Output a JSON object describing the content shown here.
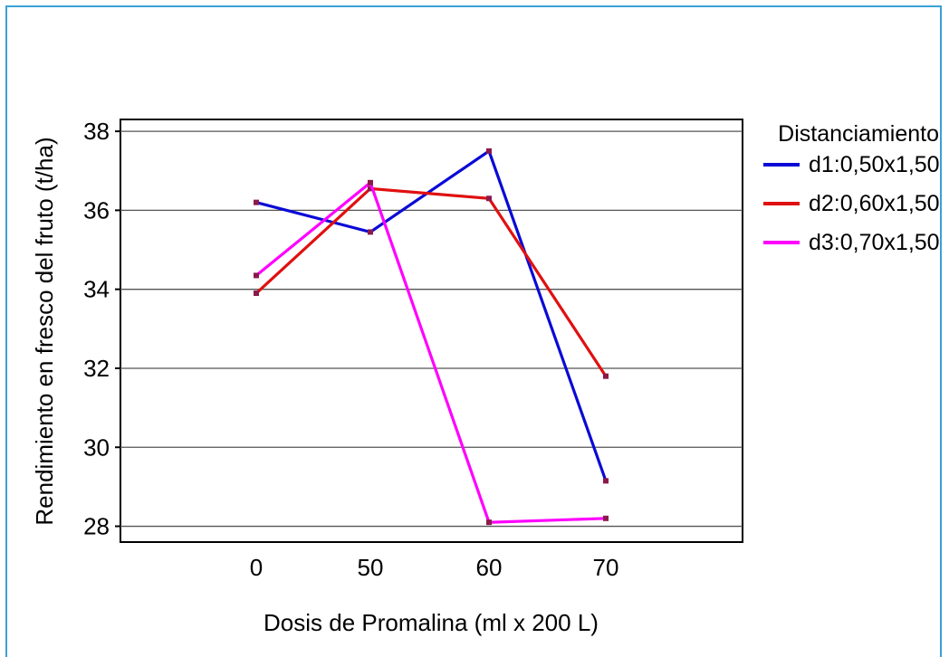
{
  "chart_data": {
    "type": "line",
    "title": "",
    "xlabel": "Dosis de Promalina (ml x 200 L)",
    "ylabel": "Rendimiento en fresco del fruto (t/ha)",
    "categories": [
      "0",
      "50",
      "60",
      "70"
    ],
    "ylim": [
      27.6,
      38.3
    ],
    "yticks": [
      28,
      30,
      32,
      34,
      36,
      38
    ],
    "grid": "horizontal",
    "legend": {
      "title": "Distanciamiento",
      "placement": "right"
    },
    "series": [
      {
        "name": "d1:0,50x1,50",
        "color": "#0a0ad6",
        "values": [
          36.2,
          35.45,
          37.5,
          29.15
        ]
      },
      {
        "name": "d2:0,60x1,50",
        "color": "#e01010",
        "values": [
          33.9,
          36.55,
          36.3,
          31.8
        ]
      },
      {
        "name": "d3:0,70x1,50",
        "color": "#ff00ff",
        "values": [
          34.35,
          36.7,
          28.1,
          28.2
        ]
      }
    ]
  }
}
